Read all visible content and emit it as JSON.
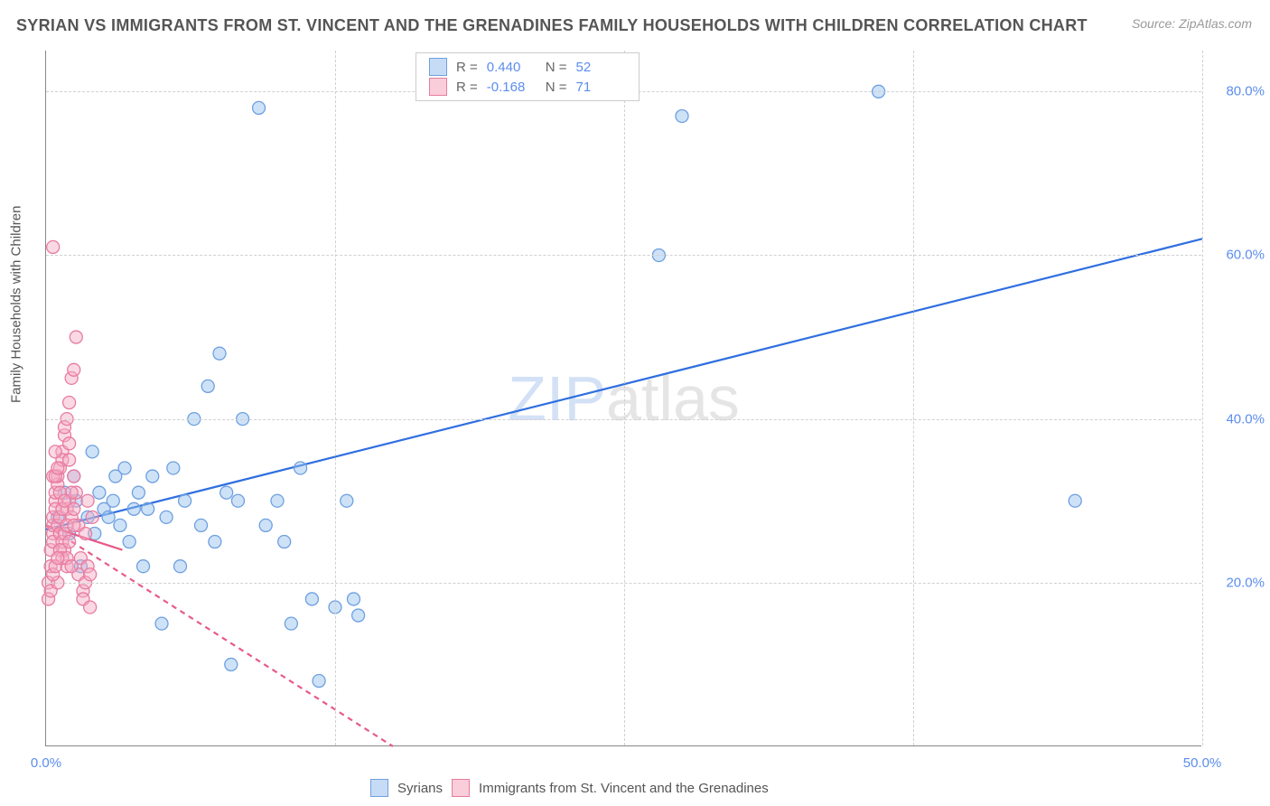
{
  "title": "SYRIAN VS IMMIGRANTS FROM ST. VINCENT AND THE GRENADINES FAMILY HOUSEHOLDS WITH CHILDREN CORRELATION CHART",
  "source": "Source: ZipAtlas.com",
  "ylabel": "Family Households with Children",
  "watermark_a": "ZIP",
  "watermark_b": "atlas",
  "chart": {
    "type": "scatter",
    "background_color": "#ffffff",
    "grid_color": "#d0d0d0",
    "axis_color": "#888888",
    "tick_color": "#5b8def",
    "xlim": [
      0,
      50
    ],
    "ylim": [
      0,
      85
    ],
    "x_ticks": [
      0.0,
      50.0
    ],
    "y_ticks": [
      20.0,
      40.0,
      60.0,
      80.0
    ],
    "x_tick_fmt": "0.0%",
    "y_tick_fmt": "0.0%",
    "y_gridlines": [
      20,
      40,
      60,
      80
    ],
    "x_gridlines": [
      12.5,
      25,
      37.5,
      50
    ],
    "marker_radius": 7,
    "marker_stroke_width": 1.3,
    "reg_line_width": 2.2,
    "legend_top": [
      {
        "swatch_fill": "#c6dcf6",
        "swatch_stroke": "#6ea0e0",
        "r_label": "R =",
        "r_value": "0.440",
        "n_label": "N =",
        "n_value": "52"
      },
      {
        "swatch_fill": "#f9cdd9",
        "swatch_stroke": "#e87ca0",
        "r_label": "R =",
        "r_value": "-0.168",
        "n_label": "N =",
        "n_value": "71"
      }
    ],
    "legend_bottom": [
      {
        "swatch_fill": "#c6dcf6",
        "swatch_stroke": "#6ea0e0",
        "label": "Syrians"
      },
      {
        "swatch_fill": "#f9cdd9",
        "swatch_stroke": "#e87ca0",
        "label": "Immigrants from St. Vincent and the Grenadines"
      }
    ],
    "series": [
      {
        "name": "Syrians",
        "color_fill": "rgba(147,190,238,0.45)",
        "color_stroke": "#6ea0e0",
        "reg_color": "#2f6fe0",
        "reg_dash": "none",
        "reg_line": {
          "x1": 0,
          "y1": 26.5,
          "x2": 50,
          "y2": 62
        },
        "points": [
          [
            0.5,
            28
          ],
          [
            0.8,
            31
          ],
          [
            1.0,
            26
          ],
          [
            1.2,
            33
          ],
          [
            1.3,
            30
          ],
          [
            1.5,
            22
          ],
          [
            1.8,
            28
          ],
          [
            2.0,
            36
          ],
          [
            2.1,
            26
          ],
          [
            2.3,
            31
          ],
          [
            2.5,
            29
          ],
          [
            2.7,
            28
          ],
          [
            2.9,
            30
          ],
          [
            3.0,
            33
          ],
          [
            3.2,
            27
          ],
          [
            3.4,
            34
          ],
          [
            3.6,
            25
          ],
          [
            3.8,
            29
          ],
          [
            4.0,
            31
          ],
          [
            4.2,
            22
          ],
          [
            4.4,
            29
          ],
          [
            4.6,
            33
          ],
          [
            5.0,
            15
          ],
          [
            5.2,
            28
          ],
          [
            5.5,
            34
          ],
          [
            5.8,
            22
          ],
          [
            6.0,
            30
          ],
          [
            6.4,
            40
          ],
          [
            6.7,
            27
          ],
          [
            7.0,
            44
          ],
          [
            7.3,
            25
          ],
          [
            7.5,
            48
          ],
          [
            7.8,
            31
          ],
          [
            8.0,
            10
          ],
          [
            8.3,
            30
          ],
          [
            8.5,
            40
          ],
          [
            9.2,
            78
          ],
          [
            9.5,
            27
          ],
          [
            10.0,
            30
          ],
          [
            10.3,
            25
          ],
          [
            10.6,
            15
          ],
          [
            11.0,
            34
          ],
          [
            11.5,
            18
          ],
          [
            11.8,
            8
          ],
          [
            12.5,
            17
          ],
          [
            13.0,
            30
          ],
          [
            13.3,
            18
          ],
          [
            13.5,
            16
          ],
          [
            26.5,
            60
          ],
          [
            27.5,
            77
          ],
          [
            36.0,
            80
          ],
          [
            44.5,
            30
          ]
        ]
      },
      {
        "name": "Immigrants from St. Vincent and the Grenadines",
        "color_fill": "rgba(244,170,195,0.45)",
        "color_stroke": "#e87ca0",
        "reg_color": "#e85a88",
        "reg_dash": "6,5",
        "reg_line": {
          "x1": 0,
          "y1": 27,
          "x2": 15,
          "y2": 0
        },
        "reg_solid_seg": {
          "x1": 0,
          "y1": 27,
          "x2": 3.3,
          "y2": 24
        },
        "points": [
          [
            0.1,
            18
          ],
          [
            0.1,
            20
          ],
          [
            0.2,
            22
          ],
          [
            0.2,
            24
          ],
          [
            0.3,
            26
          ],
          [
            0.3,
            25
          ],
          [
            0.3,
            27
          ],
          [
            0.3,
            28
          ],
          [
            0.4,
            30
          ],
          [
            0.4,
            29
          ],
          [
            0.4,
            31
          ],
          [
            0.5,
            32
          ],
          [
            0.5,
            33
          ],
          [
            0.5,
            27
          ],
          [
            0.6,
            26
          ],
          [
            0.6,
            28
          ],
          [
            0.6,
            34
          ],
          [
            0.7,
            36
          ],
          [
            0.7,
            35
          ],
          [
            0.7,
            25
          ],
          [
            0.8,
            24
          ],
          [
            0.8,
            38
          ],
          [
            0.8,
            39
          ],
          [
            0.9,
            22
          ],
          [
            0.9,
            40
          ],
          [
            0.9,
            29
          ],
          [
            1.0,
            30
          ],
          [
            1.0,
            37
          ],
          [
            1.0,
            42
          ],
          [
            1.1,
            45
          ],
          [
            1.1,
            28
          ],
          [
            1.2,
            29
          ],
          [
            1.2,
            46
          ],
          [
            1.3,
            31
          ],
          [
            1.3,
            50
          ],
          [
            1.4,
            21
          ],
          [
            1.4,
            27
          ],
          [
            1.5,
            23
          ],
          [
            1.6,
            19
          ],
          [
            1.6,
            18
          ],
          [
            1.7,
            26
          ],
          [
            1.7,
            20
          ],
          [
            1.8,
            30
          ],
          [
            1.8,
            22
          ],
          [
            1.9,
            21
          ],
          [
            1.9,
            17
          ],
          [
            2.0,
            28
          ],
          [
            0.2,
            19
          ],
          [
            0.3,
            33
          ],
          [
            0.4,
            36
          ],
          [
            0.5,
            20
          ],
          [
            0.6,
            24
          ],
          [
            0.7,
            23
          ],
          [
            0.8,
            26
          ],
          [
            0.9,
            27
          ],
          [
            1.0,
            25
          ],
          [
            1.1,
            31
          ],
          [
            1.2,
            33
          ],
          [
            0.4,
            33
          ],
          [
            0.5,
            34
          ],
          [
            0.6,
            31
          ],
          [
            0.7,
            29
          ],
          [
            0.8,
            30
          ],
          [
            0.9,
            23
          ],
          [
            1.0,
            35
          ],
          [
            1.1,
            22
          ],
          [
            1.2,
            27
          ],
          [
            0.3,
            61
          ],
          [
            0.3,
            21
          ],
          [
            0.4,
            22
          ],
          [
            0.5,
            23
          ]
        ]
      }
    ]
  }
}
